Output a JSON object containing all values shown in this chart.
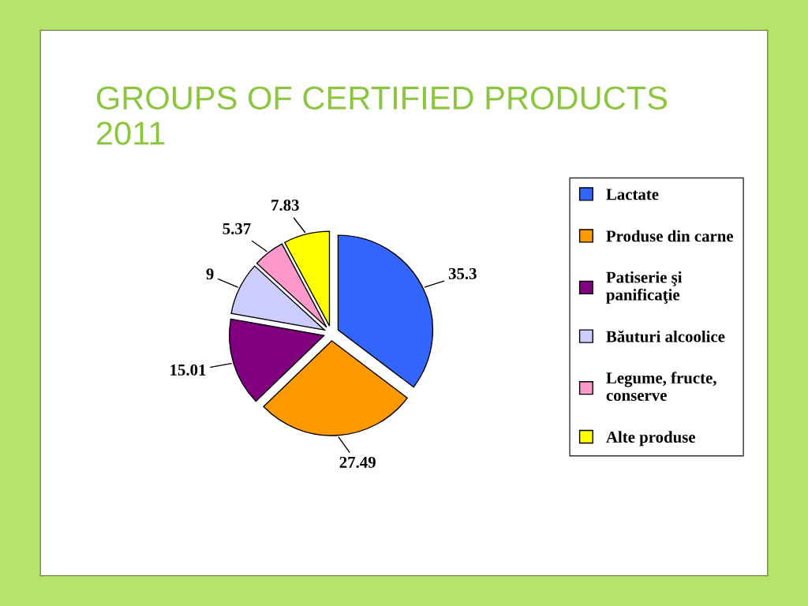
{
  "chart_data": {
    "type": "pie",
    "title": "GROUPS OF CERTIFIED PRODUCTS\n2011",
    "categories": [
      "Lactate",
      "Produse din carne",
      "Patiserie şi\npanificaţie",
      "Băuturi alcoolice",
      "Legume, fructe,\nconserve",
      "Alte produse"
    ],
    "values": [
      35.3,
      27.49,
      15.01,
      9,
      5.37,
      7.83
    ],
    "colors": [
      "#3366ff",
      "#ff9900",
      "#800080",
      "#ccccff",
      "#ff99cc",
      "#ffff00"
    ],
    "data_labels": true,
    "legend": "right"
  }
}
